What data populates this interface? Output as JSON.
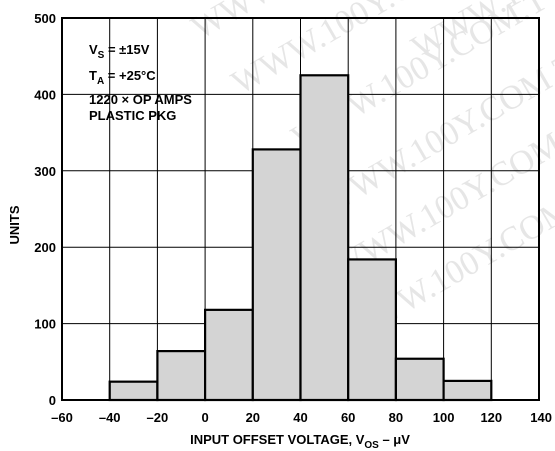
{
  "chart_data": {
    "type": "bar",
    "title": "",
    "xlabel": {
      "main": "INPUT OFFSET VOLTAGE, V",
      "sub": "OS",
      "unit": " – μV"
    },
    "ylabel": "UNITS",
    "xlim": [
      -60,
      140
    ],
    "ylim": [
      0,
      500
    ],
    "xticks": [
      "–60",
      "–40",
      "–20",
      "0",
      "20",
      "40",
      "60",
      "80",
      "100",
      "120",
      "140"
    ],
    "yticks": [
      "0",
      "100",
      "200",
      "300",
      "400",
      "500"
    ],
    "grid": true,
    "bins": [
      {
        "x0": -40,
        "x1": -20,
        "value": 24
      },
      {
        "x0": -20,
        "x1": 0,
        "value": 64
      },
      {
        "x0": 0,
        "x1": 20,
        "value": 118
      },
      {
        "x0": 20,
        "x1": 40,
        "value": 328
      },
      {
        "x0": 40,
        "x1": 60,
        "value": 425
      },
      {
        "x0": 60,
        "x1": 80,
        "value": 184
      },
      {
        "x0": 80,
        "x1": 100,
        "value": 54
      },
      {
        "x0": 100,
        "x1": 120,
        "value": 25
      }
    ],
    "bar_color": "#d4d4d4",
    "annotations": {
      "vs": {
        "main": "V",
        "sub": "S",
        "rest": " = ±15V"
      },
      "ta": {
        "main": "T",
        "sub": "A",
        "rest": " = +25°C"
      },
      "line3": "1220 × OP AMPS",
      "line4": "PLASTIC PKG"
    },
    "watermark": "WWW.100Y.COM.TW"
  }
}
